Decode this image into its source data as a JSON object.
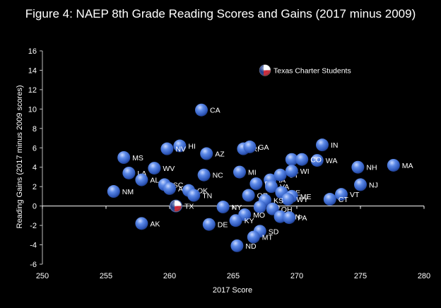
{
  "chart_data": {
    "type": "scatter",
    "title": "Figure 4: NAEP 8th Grade Reading Scores and Gains (2017 minus 2009)",
    "xlabel": "2017 Score",
    "ylabel": "Reading Gains (2017 minus 2009 scores)",
    "xlim": [
      250,
      280
    ],
    "ylim": [
      -6,
      16
    ],
    "xticks": [
      250,
      255,
      260,
      265,
      270,
      275,
      280
    ],
    "yticks": [
      -6,
      -4,
      -2,
      0,
      2,
      4,
      6,
      8,
      10,
      12,
      14,
      16
    ],
    "marker_color": "#3f6fd8",
    "grid": false,
    "points": [
      {
        "label": "CA",
        "x": 262.5,
        "y": 9.9
      },
      {
        "label": "MA",
        "x": 277.6,
        "y": 4.2
      },
      {
        "label": "NH",
        "x": 274.8,
        "y": 4.0
      },
      {
        "label": "NJ",
        "x": 275.0,
        "y": 2.2
      },
      {
        "label": "IN",
        "x": 272.0,
        "y": 6.3
      },
      {
        "label": "WA",
        "x": 271.6,
        "y": 4.7
      },
      {
        "label": "ID",
        "x": 269.6,
        "y": 4.8
      },
      {
        "label": "CO",
        "x": 270.4,
        "y": 4.8
      },
      {
        "label": "VT",
        "x": 273.5,
        "y": 1.2
      },
      {
        "label": "CT",
        "x": 272.6,
        "y": 0.7
      },
      {
        "label": "HI",
        "x": 260.8,
        "y": 6.2
      },
      {
        "label": "NV",
        "x": 259.8,
        "y": 5.9
      },
      {
        "label": "RI",
        "x": 265.8,
        "y": 5.9
      },
      {
        "label": "GA",
        "x": 266.3,
        "y": 6.1
      },
      {
        "label": "AZ",
        "x": 262.9,
        "y": 5.4
      },
      {
        "label": "MS",
        "x": 256.4,
        "y": 5.0
      },
      {
        "label": "WV",
        "x": 258.8,
        "y": 3.9
      },
      {
        "label": "LA",
        "x": 256.8,
        "y": 3.4
      },
      {
        "label": "NC",
        "x": 262.7,
        "y": 3.2
      },
      {
        "label": "MI",
        "x": 265.5,
        "y": 3.5
      },
      {
        "label": "IA",
        "x": 267.9,
        "y": 2.7
      },
      {
        "label": "UT",
        "x": 268.7,
        "y": 3.2
      },
      {
        "label": "WI",
        "x": 269.6,
        "y": 3.6
      },
      {
        "label": "AL",
        "x": 257.8,
        "y": 2.7
      },
      {
        "label": "SC",
        "x": 259.6,
        "y": 2.2
      },
      {
        "label": "AR",
        "x": 260.0,
        "y": 1.8
      },
      {
        "label": "OK",
        "x": 261.5,
        "y": 1.6
      },
      {
        "label": "FL",
        "x": 266.8,
        "y": 2.3
      },
      {
        "label": "VA",
        "x": 268.0,
        "y": 2.0
      },
      {
        "label": "NE",
        "x": 268.8,
        "y": 1.4
      },
      {
        "label": "ME",
        "x": 269.6,
        "y": 1.0
      },
      {
        "label": "WY",
        "x": 269.3,
        "y": 0.7
      },
      {
        "label": "NM",
        "x": 255.6,
        "y": 1.5
      },
      {
        "label": "TN",
        "x": 261.9,
        "y": 1.1
      },
      {
        "label": "OR",
        "x": 266.2,
        "y": 1.1
      },
      {
        "label": "KS",
        "x": 267.5,
        "y": 0.6
      },
      {
        "label": "TX",
        "x": 260.5,
        "y": 0.0
      },
      {
        "label": "NY",
        "x": 264.2,
        "y": -0.1
      },
      {
        "label": "MD",
        "x": 267.1,
        "y": -0.1
      },
      {
        "label": "OH",
        "x": 268.1,
        "y": -0.3
      },
      {
        "label": "MO",
        "x": 265.9,
        "y": -0.9
      },
      {
        "label": "MN",
        "x": 268.7,
        "y": -1.1
      },
      {
        "label": "PA",
        "x": 269.4,
        "y": -1.2
      },
      {
        "label": "KY",
        "x": 265.2,
        "y": -1.5
      },
      {
        "label": "DE",
        "x": 263.1,
        "y": -1.9
      },
      {
        "label": "AK",
        "x": 257.8,
        "y": -1.8
      },
      {
        "label": "SD",
        "x": 267.1,
        "y": -2.6
      },
      {
        "label": "MT",
        "x": 266.6,
        "y": -3.2
      },
      {
        "label": "ND",
        "x": 265.3,
        "y": -4.1
      }
    ],
    "special_points": [
      {
        "label": "Texas Charter Students",
        "x": 267.5,
        "y": 14.0,
        "marker": "texas-flag"
      }
    ]
  }
}
